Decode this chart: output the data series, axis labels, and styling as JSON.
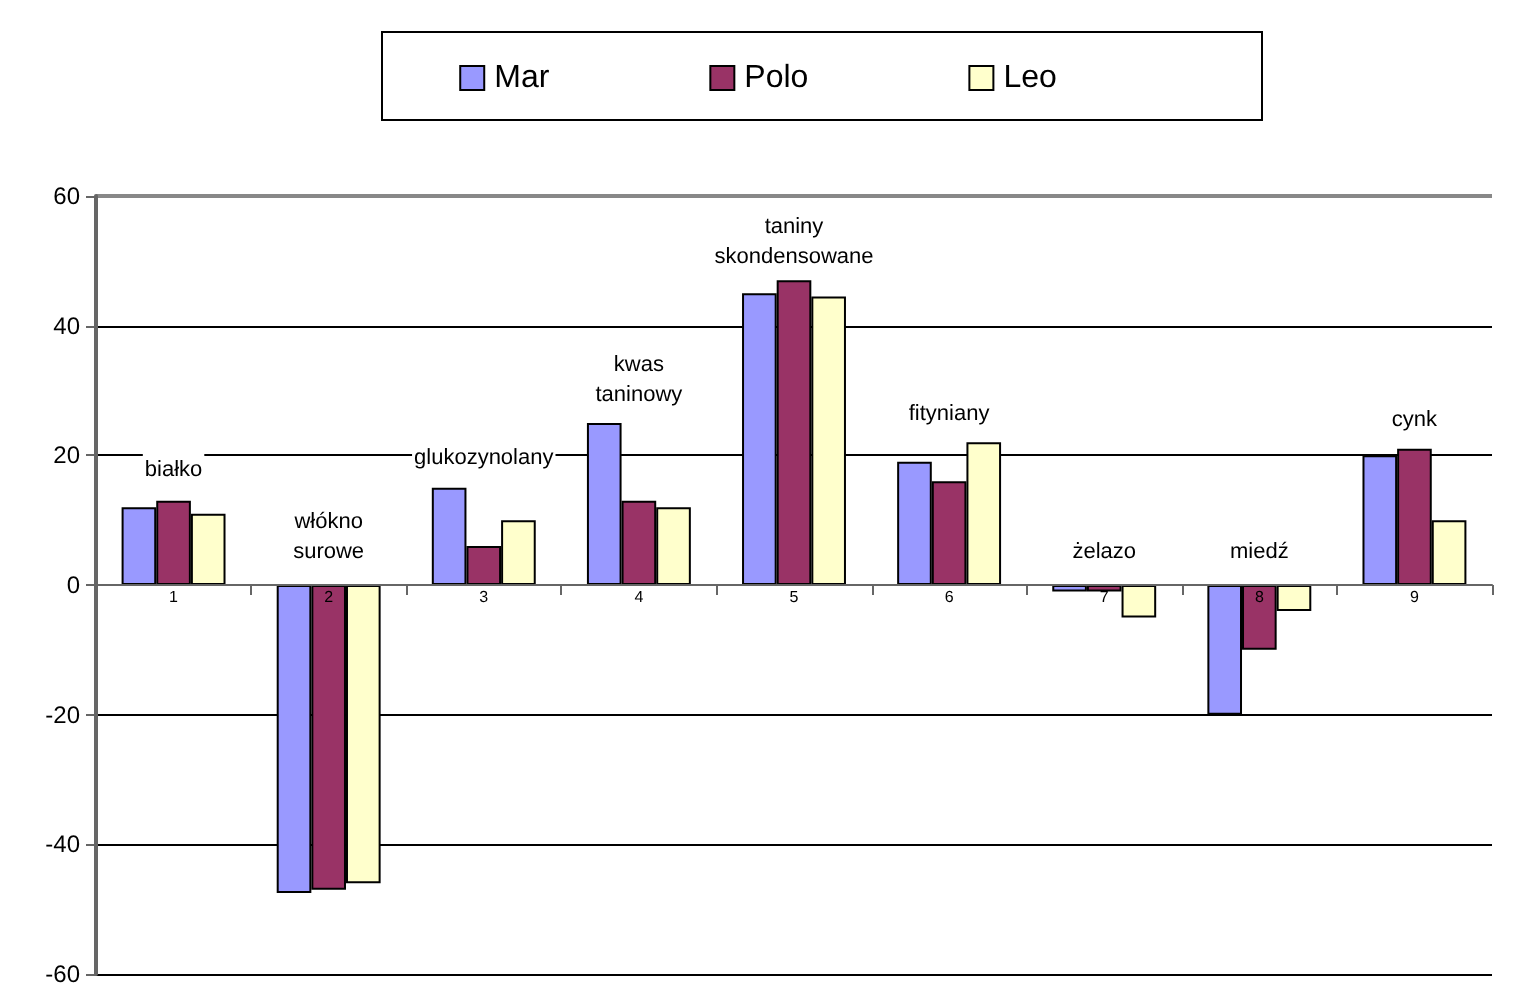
{
  "chart_data": {
    "type": "bar",
    "categories": [
      "1",
      "2",
      "3",
      "4",
      "5",
      "6",
      "7",
      "8",
      "9"
    ],
    "series": [
      {
        "name": "Mar",
        "color": "#9999ff",
        "values": [
          12,
          -47.5,
          15,
          25,
          45,
          19,
          -1,
          -20,
          20
        ]
      },
      {
        "name": "Polo",
        "color": "#993366",
        "values": [
          13,
          -47,
          6,
          13,
          47,
          16,
          -1,
          -10,
          21
        ]
      },
      {
        "name": "Leo",
        "color": "#ffffcc",
        "values": [
          11,
          -46,
          10,
          12,
          44.5,
          22,
          -5,
          -4,
          10
        ]
      }
    ],
    "ylim": [
      -60,
      60
    ],
    "yticks": [
      -60,
      -40,
      -20,
      0,
      20,
      40,
      60
    ],
    "grid": "y",
    "legend": "top",
    "annotations": [
      "białko",
      "włókno\nsurowe",
      "glukozynolany",
      "kwas\ntaninowy",
      "taniny\nskondensowane",
      "fityniany",
      "żelazo",
      "miedź",
      "cynk"
    ]
  }
}
